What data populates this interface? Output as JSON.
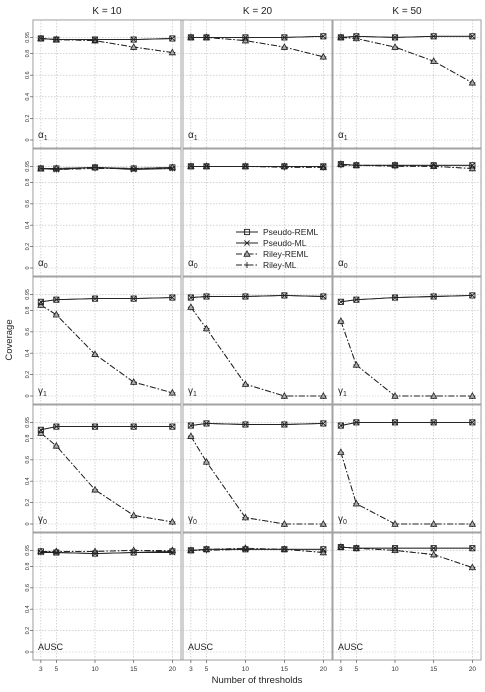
{
  "chart_data": {
    "type": "line",
    "xlabel": "Number of thresholds",
    "ylabel": "Coverage",
    "x": [
      3,
      5,
      10,
      15,
      20
    ],
    "x_ticks": [
      "3",
      "5",
      "10",
      "15",
      "20"
    ],
    "ylim": [
      0,
      1
    ],
    "y_ticks": [
      "0",
      "0.2",
      "0.4",
      "0.6",
      "0.8",
      "0.95"
    ],
    "grid": true,
    "legend_position": "inside second-row middle panel",
    "legend": [
      {
        "name": "Pseudo-REML",
        "marker": "square",
        "dash": "solid"
      },
      {
        "name": "Pseudo-ML",
        "marker": "cross",
        "dash": "solid"
      },
      {
        "name": "Riley-REML",
        "marker": "triangle",
        "dash": "dashdot"
      },
      {
        "name": "Riley-ML",
        "marker": "plus",
        "dash": "dashdot"
      }
    ],
    "columns": [
      "K = 10",
      "K = 20",
      "K = 50"
    ],
    "rows": [
      {
        "parameter": "α",
        "subscript": "1",
        "greek": true
      },
      {
        "parameter": "α",
        "subscript": "0",
        "greek": true
      },
      {
        "parameter": "γ",
        "subscript": "1",
        "greek": true
      },
      {
        "parameter": "γ",
        "subscript": "0",
        "greek": true
      },
      {
        "parameter": "AUSC",
        "subscript": "",
        "greek": false
      }
    ],
    "panels": [
      [
        {
          "Pseudo-REML": [
            0.94,
            0.93,
            0.93,
            0.93,
            0.94
          ],
          "Pseudo-ML": [
            0.94,
            0.93,
            0.93,
            0.93,
            0.94
          ],
          "Riley-REML": [
            0.94,
            0.93,
            0.92,
            0.86,
            0.81
          ],
          "Riley-ML": [
            0.94,
            0.93,
            0.92,
            0.86,
            0.81
          ]
        },
        {
          "Pseudo-REML": [
            0.95,
            0.95,
            0.95,
            0.95,
            0.96
          ],
          "Pseudo-ML": [
            0.95,
            0.95,
            0.95,
            0.95,
            0.96
          ],
          "Riley-REML": [
            0.95,
            0.95,
            0.92,
            0.86,
            0.77
          ],
          "Riley-ML": [
            0.95,
            0.95,
            0.92,
            0.86,
            0.77
          ]
        },
        {
          "Pseudo-REML": [
            0.95,
            0.96,
            0.95,
            0.96,
            0.96
          ],
          "Pseudo-ML": [
            0.95,
            0.96,
            0.95,
            0.96,
            0.96
          ],
          "Riley-REML": [
            0.95,
            0.94,
            0.86,
            0.73,
            0.53
          ],
          "Riley-ML": [
            0.95,
            0.94,
            0.86,
            0.73,
            0.53
          ]
        }
      ],
      [
        {
          "Pseudo-REML": [
            0.93,
            0.93,
            0.94,
            0.93,
            0.94
          ],
          "Pseudo-ML": [
            0.93,
            0.92,
            0.94,
            0.92,
            0.93
          ],
          "Riley-REML": [
            0.93,
            0.93,
            0.94,
            0.93,
            0.94
          ],
          "Riley-ML": [
            0.93,
            0.92,
            0.93,
            0.93,
            0.93
          ]
        },
        {
          "Pseudo-REML": [
            0.95,
            0.95,
            0.95,
            0.95,
            0.95
          ],
          "Pseudo-ML": [
            0.95,
            0.95,
            0.95,
            0.95,
            0.95
          ],
          "Riley-REML": [
            0.95,
            0.95,
            0.95,
            0.95,
            0.94
          ],
          "Riley-ML": [
            0.95,
            0.95,
            0.95,
            0.94,
            0.94
          ]
        },
        {
          "Pseudo-REML": [
            0.97,
            0.96,
            0.96,
            0.96,
            0.96
          ],
          "Pseudo-ML": [
            0.97,
            0.96,
            0.96,
            0.96,
            0.96
          ],
          "Riley-REML": [
            0.97,
            0.96,
            0.96,
            0.95,
            0.93
          ],
          "Riley-ML": [
            0.96,
            0.96,
            0.95,
            0.95,
            0.93
          ]
        }
      ],
      [
        {
          "Pseudo-REML": [
            0.88,
            0.9,
            0.91,
            0.91,
            0.92
          ],
          "Pseudo-ML": [
            0.88,
            0.9,
            0.91,
            0.91,
            0.92
          ],
          "Riley-REML": [
            0.85,
            0.76,
            0.39,
            0.13,
            0.03
          ],
          "Riley-ML": [
            0.85,
            0.76,
            0.39,
            0.13,
            0.03
          ]
        },
        {
          "Pseudo-REML": [
            0.92,
            0.93,
            0.93,
            0.94,
            0.93
          ],
          "Pseudo-ML": [
            0.92,
            0.93,
            0.93,
            0.94,
            0.93
          ],
          "Riley-REML": [
            0.83,
            0.63,
            0.11,
            0.0,
            0.0
          ],
          "Riley-ML": [
            0.83,
            0.63,
            0.11,
            0.0,
            0.0
          ]
        },
        {
          "Pseudo-REML": [
            0.88,
            0.9,
            0.92,
            0.93,
            0.94
          ],
          "Pseudo-ML": [
            0.88,
            0.9,
            0.92,
            0.93,
            0.94
          ],
          "Riley-REML": [
            0.7,
            0.29,
            0.0,
            0.0,
            0.0
          ],
          "Riley-ML": [
            0.7,
            0.29,
            0.0,
            0.0,
            0.0
          ]
        }
      ],
      [
        {
          "Pseudo-REML": [
            0.88,
            0.91,
            0.91,
            0.91,
            0.91
          ],
          "Pseudo-ML": [
            0.88,
            0.91,
            0.91,
            0.91,
            0.91
          ],
          "Riley-REML": [
            0.85,
            0.73,
            0.32,
            0.08,
            0.02
          ],
          "Riley-ML": [
            0.85,
            0.73,
            0.32,
            0.08,
            0.02
          ]
        },
        {
          "Pseudo-REML": [
            0.92,
            0.94,
            0.93,
            0.93,
            0.94
          ],
          "Pseudo-ML": [
            0.92,
            0.94,
            0.93,
            0.93,
            0.94
          ],
          "Riley-REML": [
            0.82,
            0.58,
            0.06,
            0.0,
            0.0
          ],
          "Riley-ML": [
            0.82,
            0.58,
            0.06,
            0.0,
            0.0
          ]
        },
        {
          "Pseudo-REML": [
            0.92,
            0.95,
            0.95,
            0.95,
            0.95
          ],
          "Pseudo-ML": [
            0.92,
            0.95,
            0.95,
            0.95,
            0.95
          ],
          "Riley-REML": [
            0.67,
            0.19,
            0.0,
            0.0,
            0.0
          ],
          "Riley-ML": [
            0.67,
            0.19,
            0.0,
            0.0,
            0.0
          ]
        }
      ],
      [
        {
          "Pseudo-REML": [
            0.94,
            0.93,
            0.92,
            0.93,
            0.94
          ],
          "Pseudo-ML": [
            0.93,
            0.93,
            0.92,
            0.93,
            0.93
          ],
          "Riley-REML": [
            0.94,
            0.94,
            0.94,
            0.95,
            0.95
          ],
          "Riley-ML": [
            0.93,
            0.94,
            0.94,
            0.95,
            0.94
          ]
        },
        {
          "Pseudo-REML": [
            0.95,
            0.96,
            0.96,
            0.96,
            0.96
          ],
          "Pseudo-ML": [
            0.95,
            0.96,
            0.96,
            0.96,
            0.96
          ],
          "Riley-REML": [
            0.95,
            0.96,
            0.97,
            0.96,
            0.93
          ],
          "Riley-ML": [
            0.95,
            0.95,
            0.96,
            0.96,
            0.93
          ]
        },
        {
          "Pseudo-REML": [
            0.98,
            0.97,
            0.97,
            0.97,
            0.97
          ],
          "Pseudo-ML": [
            0.98,
            0.97,
            0.97,
            0.97,
            0.97
          ],
          "Riley-REML": [
            0.98,
            0.97,
            0.95,
            0.91,
            0.79
          ],
          "Riley-ML": [
            0.98,
            0.97,
            0.95,
            0.91,
            0.79
          ]
        }
      ]
    ]
  }
}
